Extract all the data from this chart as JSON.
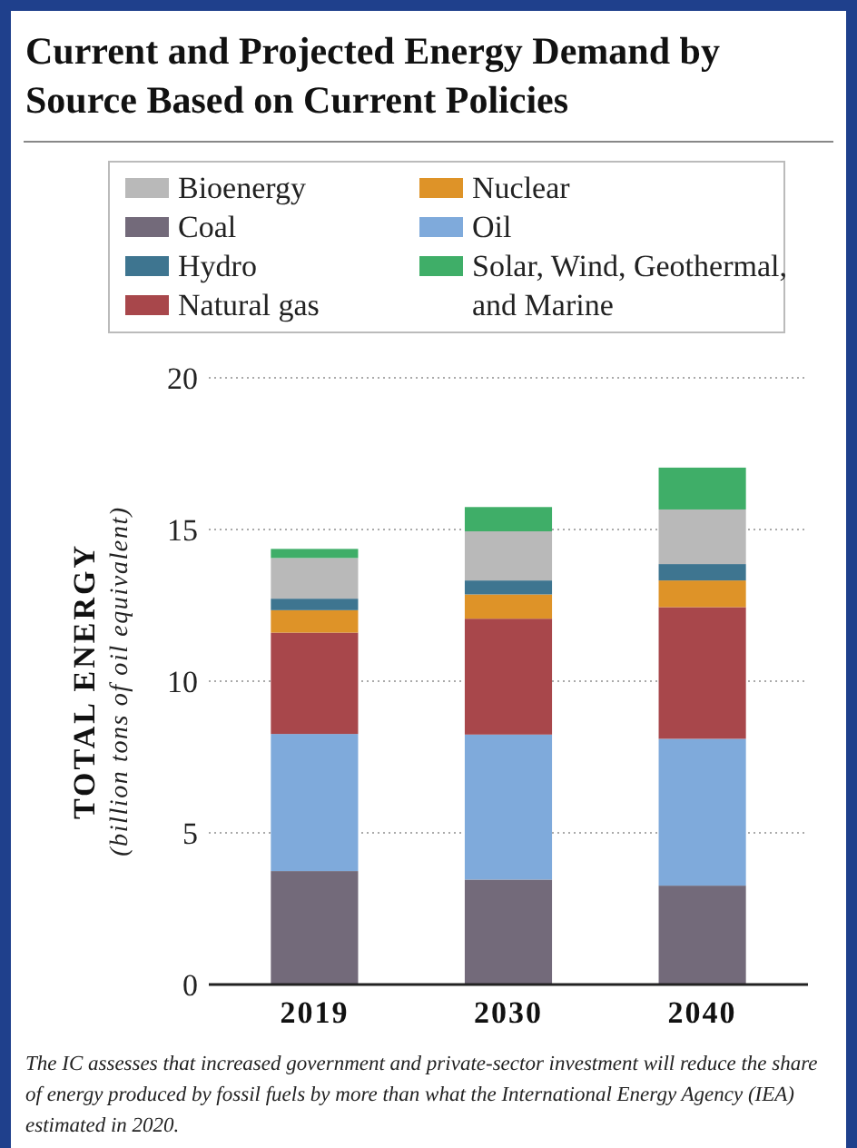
{
  "chart_data": {
    "type": "bar",
    "title": "Current and Projected Energy Demand by Source Based on Current Policies",
    "ylabel": "TOTAL ENERGY",
    "subtitle": "(billion tons of oil equivalent)",
    "categories": [
      "2019",
      "2030",
      "2040"
    ],
    "stacked": true,
    "series": [
      {
        "name": "Coal",
        "color": "#736a7a",
        "values": [
          3.74,
          3.46,
          3.26
        ]
      },
      {
        "name": "Oil",
        "color": "#7faadb",
        "values": [
          4.52,
          4.78,
          4.84
        ]
      },
      {
        "name": "Natural gas",
        "color": "#a8474b",
        "values": [
          3.34,
          3.82,
          4.34
        ]
      },
      {
        "name": "Nuclear",
        "color": "#de9328",
        "values": [
          0.74,
          0.8,
          0.88
        ]
      },
      {
        "name": "Hydro",
        "color": "#3e7590",
        "values": [
          0.38,
          0.46,
          0.54
        ]
      },
      {
        "name": "Bioenergy",
        "color": "#b9b9b9",
        "values": [
          1.34,
          1.62,
          1.8
        ]
      },
      {
        "name": "Solar, Wind, Geothermal, and Marine",
        "color": "#3fae68",
        "values": [
          0.3,
          0.8,
          1.38
        ]
      }
    ],
    "ylim": [
      0,
      20
    ],
    "yticks": [
      0,
      5,
      10,
      15,
      20
    ],
    "grid": "y",
    "legend": "top",
    "annotations": [
      "The IC assesses that increased government and private-sector investment will reduce the share of energy produced by fossil fuels by more than what the International Energy Agency (IEA) estimated in 2020."
    ]
  }
}
